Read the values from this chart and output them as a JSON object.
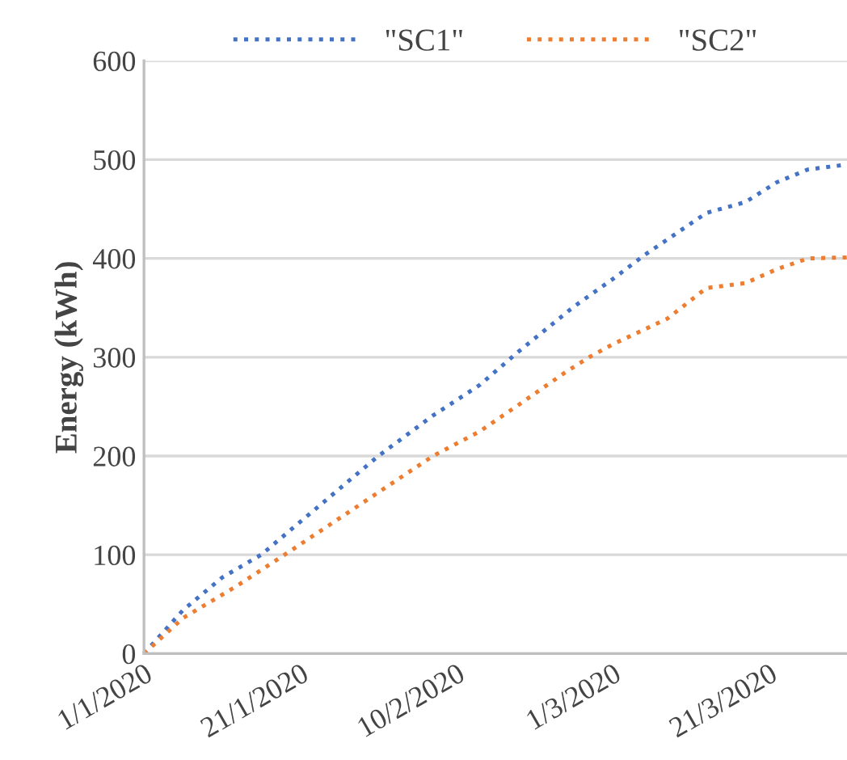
{
  "chart_data": {
    "type": "line",
    "ylabel": "Energy (kWh)",
    "xlim": [
      "2020-01-01",
      "2020-03-31"
    ],
    "ylim": [
      0,
      600
    ],
    "yticks": [
      0,
      100,
      200,
      300,
      400,
      500,
      600
    ],
    "xticks": [
      {
        "value": "2020-01-01",
        "label": "1/1/2020"
      },
      {
        "value": "2020-01-21",
        "label": "21/1/2020"
      },
      {
        "value": "2020-02-10",
        "label": "10/2/2020"
      },
      {
        "value": "2020-03-01",
        "label": "1/3/2020"
      },
      {
        "value": "2020-03-21",
        "label": "21/3/2020"
      }
    ],
    "grid": "y",
    "legend": "top",
    "line_style": "dotted",
    "marker": "none",
    "series": [
      {
        "name": "\"SC1\"",
        "color": "#4472c4",
        "x": [
          "2020-01-01",
          "2020-01-06",
          "2020-01-11",
          "2020-01-16",
          "2020-01-31",
          "2020-02-07",
          "2020-02-13",
          "2020-02-18",
          "2020-02-25",
          "2020-03-01",
          "2020-03-05",
          "2020-03-13",
          "2020-03-18",
          "2020-03-22",
          "2020-03-26",
          "2020-03-31"
        ],
        "values": [
          0,
          44,
          77,
          100,
          200,
          241,
          272,
          306,
          351,
          379,
          403,
          446,
          457,
          477,
          490,
          495
        ]
      },
      {
        "name": "\"SC2\"",
        "color": "#ed7d31",
        "x": [
          "2020-01-01",
          "2020-01-06",
          "2020-01-13",
          "2020-01-19",
          "2020-02-07",
          "2020-02-13",
          "2020-02-18",
          "2020-02-24",
          "2020-02-27",
          "2020-03-01",
          "2020-03-08",
          "2020-03-13",
          "2020-03-18",
          "2020-03-22",
          "2020-03-26",
          "2020-03-31"
        ],
        "values": [
          0,
          36,
          69,
          100,
          200,
          225,
          252,
          285,
          300,
          313,
          339,
          370,
          375,
          389,
          400,
          401
        ]
      }
    ]
  }
}
